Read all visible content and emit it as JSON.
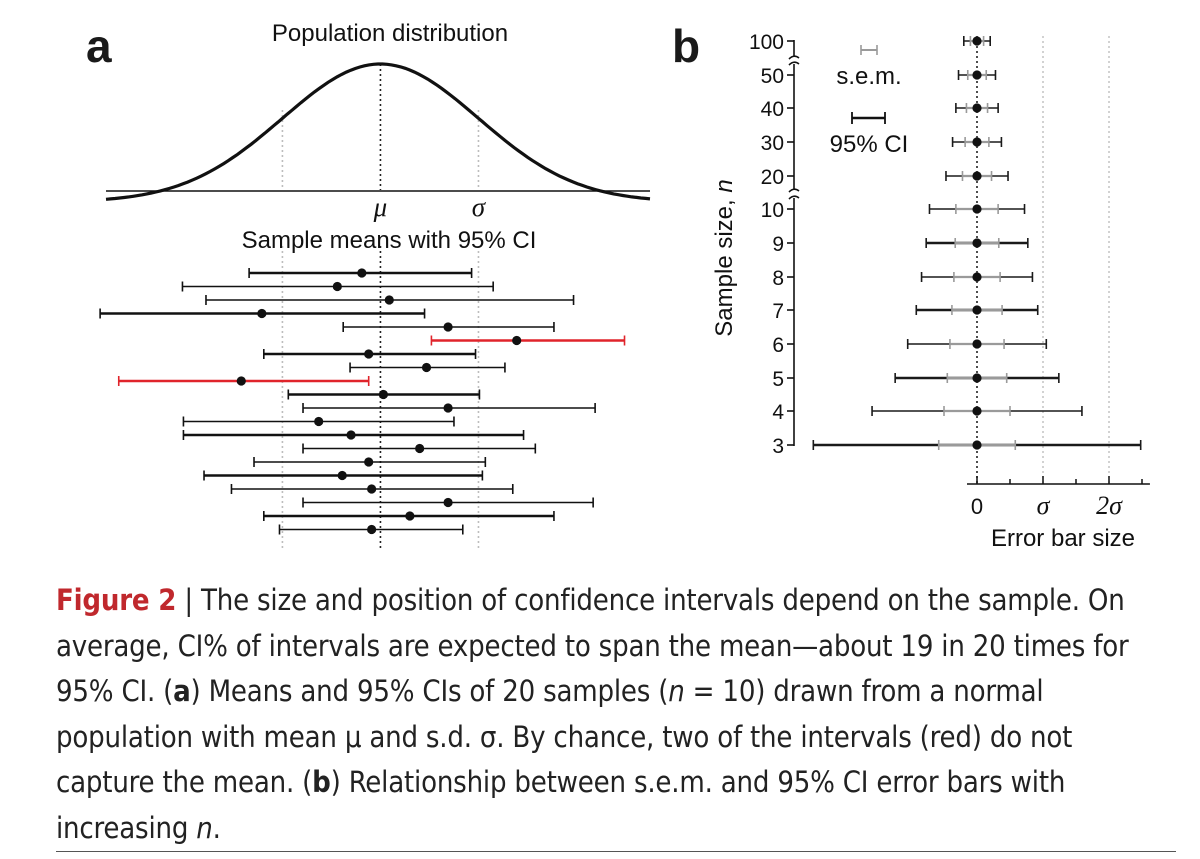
{
  "chart_data": [
    {
      "type": "scatter",
      "panel_label": "a",
      "title": "Population distribution",
      "subtitle": "Sample means with 95% CI",
      "population": {
        "mean_label": "μ",
        "sd_label": "σ",
        "x_range": [
          -2.8,
          2.75
        ]
      },
      "x_range": [
        -2.8,
        2.75
      ],
      "color_capturing": "#111111",
      "color_missing": "#e0242b",
      "samples": [
        {
          "mean": -0.19,
          "lo": -1.34,
          "hi": 0.93,
          "misses_mean": false
        },
        {
          "mean": -0.44,
          "lo": -2.02,
          "hi": 1.15,
          "misses_mean": false
        },
        {
          "mean": 0.09,
          "lo": -1.78,
          "hi": 1.97,
          "misses_mean": false
        },
        {
          "mean": -1.21,
          "lo": -2.86,
          "hi": 0.45,
          "misses_mean": false
        },
        {
          "mean": 0.69,
          "lo": -0.38,
          "hi": 1.77,
          "misses_mean": false
        },
        {
          "mean": 1.39,
          "lo": 0.52,
          "hi": 2.49,
          "misses_mean": true
        },
        {
          "mean": -0.12,
          "lo": -1.19,
          "hi": 0.97,
          "misses_mean": false
        },
        {
          "mean": 0.47,
          "lo": -0.31,
          "hi": 1.27,
          "misses_mean": false
        },
        {
          "mean": -1.42,
          "lo": -2.67,
          "hi": -0.12,
          "misses_mean": true
        },
        {
          "mean": 0.03,
          "lo": -0.94,
          "hi": 1.01,
          "misses_mean": false
        },
        {
          "mean": 0.69,
          "lo": -0.79,
          "hi": 2.19,
          "misses_mean": false
        },
        {
          "mean": -0.63,
          "lo": -2.01,
          "hi": 0.75,
          "misses_mean": false
        },
        {
          "mean": -0.3,
          "lo": -2.01,
          "hi": 1.46,
          "misses_mean": false
        },
        {
          "mean": 0.4,
          "lo": -0.79,
          "hi": 1.58,
          "misses_mean": false
        },
        {
          "mean": -0.12,
          "lo": -1.29,
          "hi": 1.07,
          "misses_mean": false
        },
        {
          "mean": -0.39,
          "lo": -1.8,
          "hi": 1.04,
          "misses_mean": false
        },
        {
          "mean": -0.09,
          "lo": -1.52,
          "hi": 1.35,
          "misses_mean": false
        },
        {
          "mean": 0.69,
          "lo": -0.79,
          "hi": 2.17,
          "misses_mean": false
        },
        {
          "mean": 0.3,
          "lo": -1.19,
          "hi": 1.77,
          "misses_mean": false
        },
        {
          "mean": -0.09,
          "lo": -1.03,
          "hi": 0.84,
          "misses_mean": false
        }
      ]
    },
    {
      "type": "scatter",
      "panel_label": "b",
      "xlabel": "Error bar size",
      "ylabel": "Sample size, n",
      "x_range": [
        -2.4,
        2.4
      ],
      "x_ticks": [
        {
          "value": 0,
          "label": "0"
        },
        {
          "value": 1,
          "label": "σ"
        },
        {
          "value": 2,
          "label": "2σ"
        }
      ],
      "legend": {
        "sem_label": "s.e.m.",
        "ci_label": "95% CI",
        "position": "top-left"
      },
      "color_sem": "#9a9a9a",
      "color_ci": "#1a1a1a",
      "rows": [
        {
          "n": "100",
          "sem": 0.1,
          "ci": 0.2
        },
        {
          "n": "50",
          "sem": 0.14,
          "ci": 0.28
        },
        {
          "n": "40",
          "sem": 0.16,
          "ci": 0.32
        },
        {
          "n": "30",
          "sem": 0.18,
          "ci": 0.37
        },
        {
          "n": "20",
          "sem": 0.22,
          "ci": 0.47
        },
        {
          "n": "10",
          "sem": 0.32,
          "ci": 0.72
        },
        {
          "n": "9",
          "sem": 0.33,
          "ci": 0.77
        },
        {
          "n": "8",
          "sem": 0.35,
          "ci": 0.84
        },
        {
          "n": "7",
          "sem": 0.38,
          "ci": 0.92
        },
        {
          "n": "6",
          "sem": 0.41,
          "ci": 1.05
        },
        {
          "n": "5",
          "sem": 0.45,
          "ci": 1.24
        },
        {
          "n": "4",
          "sem": 0.5,
          "ci": 1.59
        },
        {
          "n": "3",
          "sem": 0.58,
          "ci": 2.48
        }
      ]
    }
  ],
  "caption": {
    "fig_label": "Figure 2",
    "separator": " | ",
    "text_1": "The size and position of confidence intervals depend on the sample. On average, CI% of intervals are expected to span the mean—about 19 in 20 times for 95% CI. (",
    "bold_a": "a",
    "text_2": ") Means and 95% CIs of 20 samples (",
    "n_symbol": "n",
    "text_3": " = 10) drawn from a normal population with mean μ and s.d. σ. By chance, two of the intervals (red) do not capture the mean. (",
    "bold_b": "b",
    "text_4": ") Relationship between s.e.m. and 95% CI error bars with increasing ",
    "n_symbol_2": "n",
    "text_5": "."
  }
}
